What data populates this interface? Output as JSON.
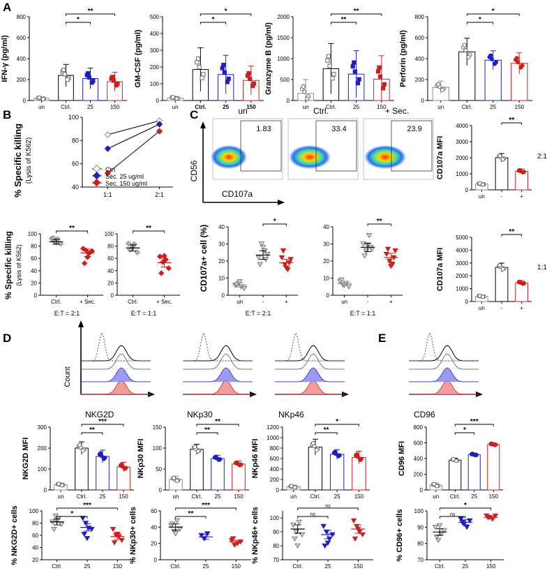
{
  "colors": {
    "black": "#000000",
    "blue": "#1f1fbf",
    "red": "#cc1f1f",
    "gray": "#8c8c8c",
    "darkred": "#a00000"
  },
  "panel_labels": {
    "A": "A",
    "B": "B",
    "C": "C",
    "D": "D",
    "E": "E"
  },
  "panel_a": {
    "groups": [
      "un",
      "Ctrl.",
      "25",
      "150"
    ],
    "bold_groups": false,
    "bold_groups_gm": true
  },
  "panel_b": {
    "ylabel": "% Specific killing",
    "ylabel_sub": "(Lysis of K562)",
    "legend": [
      "Ctrl",
      "Sec. 25 ug/ml",
      "Sec. 150 ug/ml"
    ],
    "ratio_21": "E:T = 2:1",
    "ratio_11": "E:T = 1:1",
    "groups": [
      "Ctrl.",
      "+ Sec."
    ]
  },
  "panel_c": {
    "flow_titles": [
      "un",
      "Ctrl.",
      "+ Sec."
    ],
    "flow_values": [
      "1.83",
      "33.4",
      "23.9"
    ],
    "flow_ylabel": "CD56",
    "flow_xlabel": "CD107a",
    "pct_ylabel": "CD107a+ cell (%)",
    "groups": [
      "un",
      "-",
      "+"
    ],
    "ratio_21": "E:T = 2:1",
    "ratio_11": "E:T = 1:1",
    "mfi_ylabel": "CD107a MFI",
    "side_21": "2:1",
    "side_11": "1:1"
  },
  "panel_d": {
    "hist_count": "Count",
    "hist_labels": [
      "NKG2D",
      "NKp30",
      "NKp46"
    ],
    "groups": [
      "un",
      "Ctrl.",
      "25",
      "150"
    ],
    "groups3": [
      "Ctrl.",
      "25",
      "150"
    ]
  },
  "panel_e": {
    "hist_label": "CD96"
  },
  "chart_data": [
    {
      "id": "a1",
      "type": "bar",
      "title": "IFN-γ (pg/ml)",
      "ylabel": "IFN-γ (pg/ml)",
      "categories": [
        "un",
        "Ctrl.",
        "25",
        "150"
      ],
      "values": [
        20,
        240,
        210,
        180
      ],
      "errors": [
        15,
        105,
        100,
        90
      ],
      "ylim": [
        0,
        800
      ],
      "ticks": [
        0,
        200,
        400,
        600,
        800
      ],
      "sig": [
        {
          "a": 1,
          "b": 3,
          "label": "**"
        },
        {
          "a": 1,
          "b": 2,
          "label": "*"
        }
      ]
    },
    {
      "id": "a2",
      "type": "bar",
      "title": "GM-CSF (pg/ml)",
      "ylabel": "GM-CSF (pg/ml)",
      "categories": [
        "un",
        "Ctrl.",
        "25",
        "150"
      ],
      "values": [
        15,
        185,
        155,
        120
      ],
      "errors": [
        10,
        130,
        115,
        85
      ],
      "ylim": [
        0,
        500
      ],
      "ticks": [
        0,
        100,
        200,
        300,
        400,
        500
      ],
      "sig": [
        {
          "a": 1,
          "b": 3,
          "label": "*"
        },
        {
          "a": 1,
          "b": 2,
          "label": "*"
        }
      ]
    },
    {
      "id": "a3",
      "type": "bar",
      "title": "Granzyme B (pg/ml)",
      "ylabel": "Granzyme B (pg/ml)",
      "categories": [
        "un",
        "Ctrl.",
        "25",
        "150"
      ],
      "values": [
        170,
        760,
        630,
        510
      ],
      "errors": [
        330,
        600,
        560,
        560
      ],
      "ylim": [
        0,
        2000
      ],
      "ticks": [
        0,
        500,
        1000,
        1500,
        2000
      ],
      "sig": [
        {
          "a": 1,
          "b": 3,
          "label": "**"
        },
        {
          "a": 1,
          "b": 2,
          "label": "**"
        }
      ]
    },
    {
      "id": "a4",
      "type": "bar",
      "title": "Perforin (pg/ml)",
      "ylabel": "Perforin (pg/ml)",
      "categories": [
        "un",
        "Ctrl.",
        "25",
        "150"
      ],
      "values": [
        125,
        465,
        385,
        355
      ],
      "errors": [
        60,
        130,
        90,
        100
      ],
      "ylim": [
        0,
        800
      ],
      "ticks": [
        0,
        200,
        400,
        600,
        800
      ],
      "sig": [
        {
          "a": 1,
          "b": 3,
          "label": "*"
        },
        {
          "a": 1,
          "b": 2,
          "label": "*"
        }
      ]
    },
    {
      "id": "b0",
      "type": "line",
      "categories": [
        "1:1",
        "2:1"
      ],
      "series": [
        {
          "name": "Ctrl",
          "values": [
            85,
            97
          ]
        },
        {
          "name": "Sec. 25 ug/ml",
          "values": [
            73,
            94
          ]
        },
        {
          "name": "Sec. 150 ug/ml",
          "values": [
            52,
            88
          ]
        }
      ],
      "ylim": [
        40,
        100
      ],
      "ticks": [
        40,
        60,
        80,
        100
      ]
    },
    {
      "id": "b1",
      "type": "scatter",
      "categories": [
        "Ctrl.",
        "+ Sec."
      ],
      "means": [
        87,
        69
      ],
      "errors": [
        4,
        6
      ],
      "points": [
        [
          92,
          87,
          91,
          84,
          93,
          86
        ],
        [
          76,
          73,
          68,
          72,
          52,
          62
        ]
      ],
      "ylim": [
        0,
        100
      ],
      "ticks": [
        0,
        20,
        40,
        60,
        80,
        100
      ],
      "sig": [
        {
          "a": 0,
          "b": 1,
          "label": "**"
        }
      ]
    },
    {
      "id": "b2",
      "type": "scatter",
      "categories": [
        "Ctrl.",
        "+ Sec."
      ],
      "means": [
        77,
        53
      ],
      "errors": [
        5,
        7
      ],
      "points": [
        [
          84,
          76,
          83,
          70,
          74,
          80
        ],
        [
          63,
          54,
          58,
          44,
          36,
          64
        ]
      ],
      "ylim": [
        0,
        100
      ],
      "ticks": [
        0,
        20,
        40,
        60,
        80,
        100
      ],
      "sig": [
        {
          "a": 0,
          "b": 1,
          "label": "**"
        }
      ]
    },
    {
      "id": "c1",
      "type": "scatter",
      "categories": [
        "un",
        "-",
        "+"
      ],
      "means": [
        6,
        23.5,
        19
      ],
      "errors": [
        1.2,
        2.5,
        2
      ],
      "points": [
        [
          6,
          7,
          5,
          4,
          6,
          8
        ],
        [
          22,
          30,
          26,
          24,
          18,
          28,
          21
        ],
        [
          22,
          18,
          15,
          21,
          26,
          16,
          19
        ]
      ],
      "ylim": [
        0,
        40
      ],
      "ticks": [
        0,
        10,
        20,
        30,
        40
      ],
      "sig": [
        {
          "a": 1,
          "b": 2,
          "label": "*"
        }
      ]
    },
    {
      "id": "c2",
      "type": "scatter",
      "categories": [
        "un",
        "-",
        "+"
      ],
      "means": [
        7,
        28,
        22
      ],
      "errors": [
        1.2,
        2.5,
        2.5
      ],
      "points": [
        [
          8,
          6,
          7,
          5,
          9,
          6
        ],
        [
          30,
          26,
          35,
          27,
          23,
          29,
          28
        ],
        [
          24,
          20,
          18,
          26,
          27,
          17,
          22
        ]
      ],
      "ylim": [
        0,
        40
      ],
      "ticks": [
        0,
        10,
        20,
        30,
        40
      ],
      "sig": [
        {
          "a": 1,
          "b": 2,
          "label": "**"
        }
      ]
    },
    {
      "id": "c3",
      "type": "bar",
      "ylabel": "CD107a MFI",
      "categories": [
        "un",
        "-",
        "+"
      ],
      "values": [
        360,
        2000,
        1150
      ],
      "errors": [
        80,
        260,
        150
      ],
      "ylim": [
        0,
        4000
      ],
      "ticks": [
        0,
        1000,
        2000,
        3000,
        4000
      ],
      "sig": [
        {
          "a": 1,
          "b": 2,
          "label": "**"
        }
      ]
    },
    {
      "id": "c4",
      "type": "bar",
      "ylabel": "CD107a MFI",
      "categories": [
        "un",
        "-",
        "+"
      ],
      "values": [
        400,
        2650,
        1450
      ],
      "errors": [
        90,
        340,
        180
      ],
      "ylim": [
        0,
        5000
      ],
      "ticks": [
        0,
        1000,
        2000,
        3000,
        4000,
        5000
      ],
      "sig": [
        {
          "a": 1,
          "b": 2,
          "label": "**"
        }
      ]
    },
    {
      "id": "d1",
      "type": "bar",
      "ylabel": "NKG2D MFI",
      "categories": [
        "un",
        "Ctrl.",
        "25",
        "150"
      ],
      "values": [
        25,
        200,
        160,
        110
      ],
      "errors": [
        8,
        30,
        30,
        22
      ],
      "ylim": [
        0,
        300
      ],
      "ticks": [
        0,
        100,
        200,
        300
      ],
      "sig": [
        {
          "a": 1,
          "b": 3,
          "label": "***"
        },
        {
          "a": 1,
          "b": 2,
          "label": "**"
        }
      ]
    },
    {
      "id": "d2",
      "type": "bar",
      "ylabel": "NKp30 MFI",
      "categories": [
        "un",
        "Ctrl.",
        "25",
        "150"
      ],
      "values": [
        25,
        97,
        75,
        62
      ],
      "errors": [
        8,
        12,
        8,
        7
      ],
      "ylim": [
        0,
        150
      ],
      "ticks": [
        0,
        50,
        100,
        150
      ],
      "sig": [
        {
          "a": 1,
          "b": 3,
          "label": "**"
        },
        {
          "a": 1,
          "b": 2,
          "label": "**"
        }
      ]
    },
    {
      "id": "d3",
      "type": "bar",
      "ylabel": "NKp46 MFI",
      "categories": [
        "un",
        "Ctrl.",
        "25",
        "150"
      ],
      "values": [
        60,
        820,
        680,
        620
      ],
      "errors": [
        30,
        150,
        90,
        120
      ],
      "ylim": [
        0,
        1200
      ],
      "ticks": [
        0,
        200,
        400,
        600,
        800,
        1000,
        1200
      ],
      "sig": [
        {
          "a": 1,
          "b": 3,
          "label": "*"
        },
        {
          "a": 1,
          "b": 2,
          "label": "**"
        }
      ]
    },
    {
      "id": "e1",
      "type": "bar",
      "ylabel": "CD96 MFI",
      "categories": [
        "un",
        "Ctrl.",
        "25",
        "150"
      ],
      "values": [
        60,
        380,
        450,
        580
      ],
      "errors": [
        30,
        25,
        20,
        20
      ],
      "ylim": [
        0,
        800
      ],
      "ticks": [
        0,
        200,
        400,
        600,
        800
      ],
      "sig": [
        {
          "a": 1,
          "b": 3,
          "label": "***"
        },
        {
          "a": 1,
          "b": 2,
          "label": "*"
        }
      ]
    },
    {
      "id": "d4",
      "type": "scatter",
      "ylabel": "% NKG2D+ cells",
      "categories": [
        "Ctrl.",
        "25",
        "150"
      ],
      "means": [
        82,
        73,
        58
      ],
      "errors": [
        5,
        6,
        5
      ],
      "points": [
        [
          82,
          92,
          88,
          78,
          70,
          83
        ],
        [
          88,
          80,
          72,
          70,
          62,
          55
        ],
        [
          70,
          60,
          58,
          52,
          48,
          62
        ]
      ],
      "ylim": [
        20,
        100
      ],
      "ticks": [
        20,
        40,
        60,
        80,
        100
      ],
      "sig": [
        {
          "a": 0,
          "b": 2,
          "label": "***"
        },
        {
          "a": 0,
          "b": 1,
          "label": "*"
        }
      ]
    },
    {
      "id": "d5",
      "type": "scatter",
      "ylabel": "% NKp30+ cells",
      "categories": [
        "Ctrl.",
        "25",
        "150"
      ],
      "means": [
        40,
        28,
        22
      ],
      "errors": [
        4,
        3,
        2
      ],
      "points": [
        [
          42,
          35,
          48,
          38,
          44,
          32
        ],
        [
          30,
          26,
          32
        ],
        [
          24,
          18,
          20,
          22,
          26
        ]
      ],
      "ylim": [
        0,
        60
      ],
      "ticks": [
        0,
        20,
        40,
        60
      ],
      "sig": [
        {
          "a": 0,
          "b": 2,
          "label": "***"
        },
        {
          "a": 0,
          "b": 1,
          "label": "**"
        }
      ]
    },
    {
      "id": "d6",
      "type": "scatter",
      "ylabel": "% NKp46+ cells",
      "categories": [
        "Ctrl.",
        "25",
        "150"
      ],
      "means": [
        92,
        88,
        92
      ],
      "errors": [
        3,
        3,
        3
      ],
      "points": [
        [
          95,
          90,
          97,
          88,
          85,
          80
        ],
        [
          94,
          90,
          85,
          88,
          80,
          82
        ],
        [
          98,
          94,
          90,
          88,
          85,
          92
        ]
      ],
      "ylim": [
        70,
        105
      ],
      "ticks": [
        70,
        80,
        90,
        100
      ],
      "sig": [
        {
          "a": 0,
          "b": 2,
          "label": "ns"
        },
        {
          "a": 0,
          "b": 1,
          "label": "ns"
        }
      ]
    },
    {
      "id": "e2",
      "type": "scatter",
      "ylabel": "% CD96+ cells",
      "categories": [
        "Ctrl.",
        "25",
        "150"
      ],
      "means": [
        87,
        93,
        96
      ],
      "errors": [
        2,
        1.5,
        0.8
      ],
      "points": [
        [
          90,
          82,
          86,
          88,
          84,
          91
        ],
        [
          95,
          92,
          90,
          94,
          93
        ],
        [
          97,
          96,
          95,
          97,
          96
        ]
      ],
      "ylim": [
        70,
        100
      ],
      "ticks": [
        70,
        80,
        90,
        100
      ],
      "sig": [
        {
          "a": 0,
          "b": 2,
          "label": "*"
        },
        {
          "a": 0,
          "b": 1,
          "label": "ns"
        }
      ]
    }
  ]
}
